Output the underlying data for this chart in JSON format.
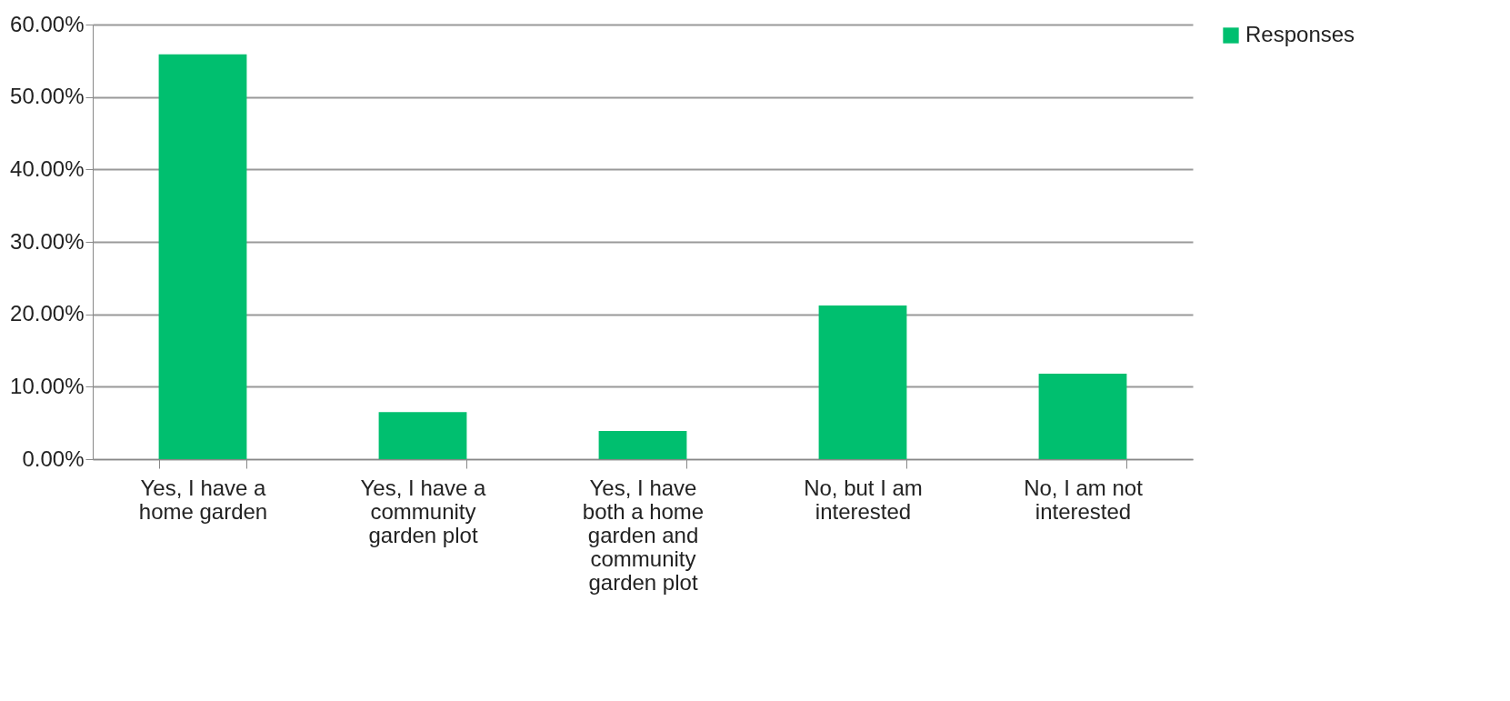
{
  "chart_data": {
    "type": "bar",
    "categories": [
      "Yes, I have a home garden",
      "Yes, I have a community garden plot",
      "Yes, I have both a home garden and community garden plot",
      "No, but I am interested",
      "No, I am not interested"
    ],
    "series": [
      {
        "name": "Responses",
        "color": "#00bf6f",
        "values": [
          55.9,
          6.5,
          3.9,
          21.2,
          11.8
        ]
      }
    ],
    "ylim": [
      0,
      60
    ],
    "yticks": [
      {
        "value": 0,
        "label": "0.00%"
      },
      {
        "value": 10,
        "label": "10.00%"
      },
      {
        "value": 20,
        "label": "20.00%"
      },
      {
        "value": 30,
        "label": "30.00%"
      },
      {
        "value": 40,
        "label": "40.00%"
      },
      {
        "value": 50,
        "label": "50.00%"
      },
      {
        "value": 60,
        "label": "60.00%"
      }
    ],
    "grid": "y",
    "legend": "right"
  }
}
